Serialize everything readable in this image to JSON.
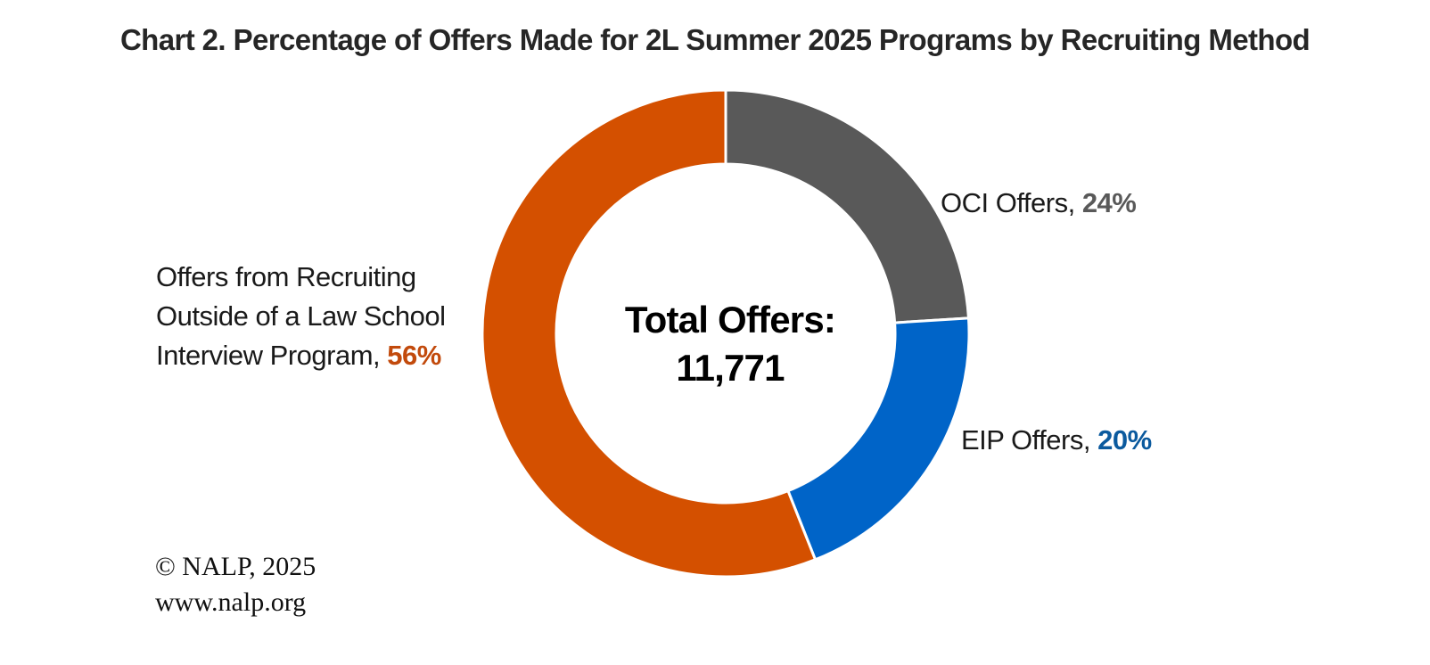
{
  "chart_data": {
    "type": "pie",
    "title": "Chart 2. Percentage of Offers Made for 2L Summer 2025 Programs by Recruiting Method",
    "center_text": [
      "Total Offers:",
      "11,771"
    ],
    "slices": [
      {
        "label": "OCI Offers,",
        "value": 24,
        "value_text": "24%",
        "color": "#595959",
        "text_color": "#595959"
      },
      {
        "label": "EIP Offers,",
        "value": 20,
        "value_text": "20%",
        "color": "#0064C8",
        "text_color": "#0B5A9E"
      },
      {
        "label_lines": [
          "Offers from Recruiting",
          "Outside of a Law School",
          "Interview Program,"
        ],
        "value": 56,
        "value_text": "56%",
        "color": "#D45000",
        "text_color": "#C24A0C"
      }
    ]
  },
  "credit": {
    "line1": "© NALP, 2025",
    "line2": "www.nalp.org"
  }
}
